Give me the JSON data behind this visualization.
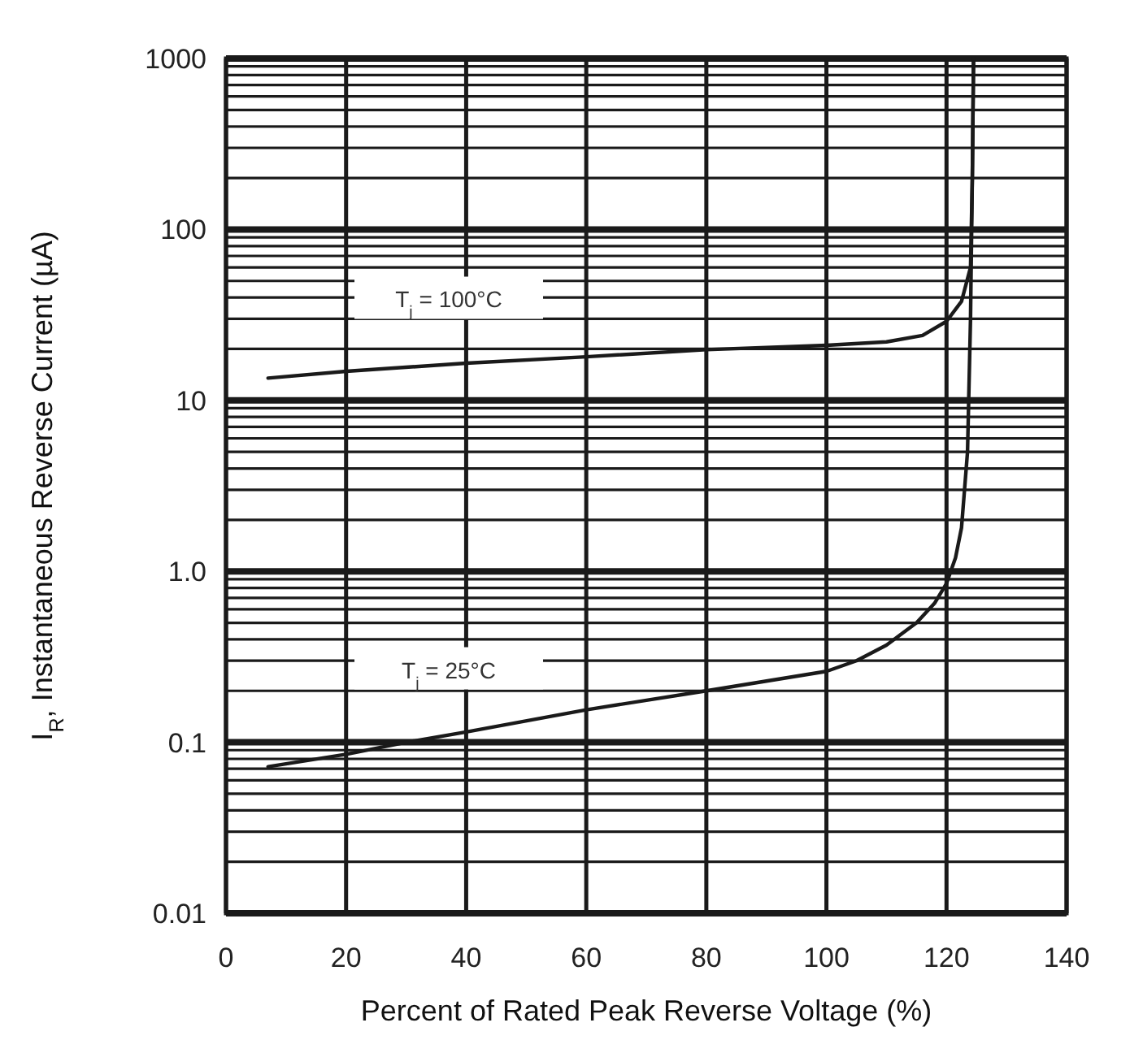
{
  "chart_data": {
    "type": "line",
    "xlabel": "Percent of Rated Peak Reverse Voltage (%)",
    "ylabel": "I$_{R}$, Instantaneous Reverse Current (µA)",
    "log": "y",
    "grid": true,
    "xlim": [
      0,
      140
    ],
    "xticks": [
      0,
      20,
      40,
      60,
      80,
      100,
      120,
      140
    ],
    "ylim": [
      0.01,
      1000
    ],
    "yticks": [
      0.01,
      0.1,
      {
        "value": 1,
        "label": "1.0"
      },
      10,
      100,
      1000
    ],
    "line_style": "solid",
    "marker": "none",
    "series": [
      {
        "name": "T$_{j}$ = 100°C",
        "color": "#1a1a1a",
        "x": [
          7,
          20,
          40,
          60,
          80,
          100,
          110,
          116,
          120,
          122.5,
          124,
          124.3,
          124.5
        ],
        "values": [
          13.5,
          14.8,
          16.5,
          18,
          19.8,
          21,
          22,
          24,
          29,
          38,
          60,
          200,
          1000
        ]
      },
      {
        "name": "T$_{j}$ = 25°C",
        "color": "#1a1a1a",
        "x": [
          7,
          20,
          30,
          40,
          60,
          80,
          100,
          105,
          110,
          115,
          118,
          120,
          121.5,
          122.5,
          123.5,
          124,
          124.3,
          124.5
        ],
        "values": [
          0.072,
          0.085,
          0.1,
          0.115,
          0.155,
          0.2,
          0.26,
          0.3,
          0.37,
          0.5,
          0.65,
          0.85,
          1.2,
          1.8,
          5,
          30,
          200,
          1000
        ]
      }
    ]
  }
}
